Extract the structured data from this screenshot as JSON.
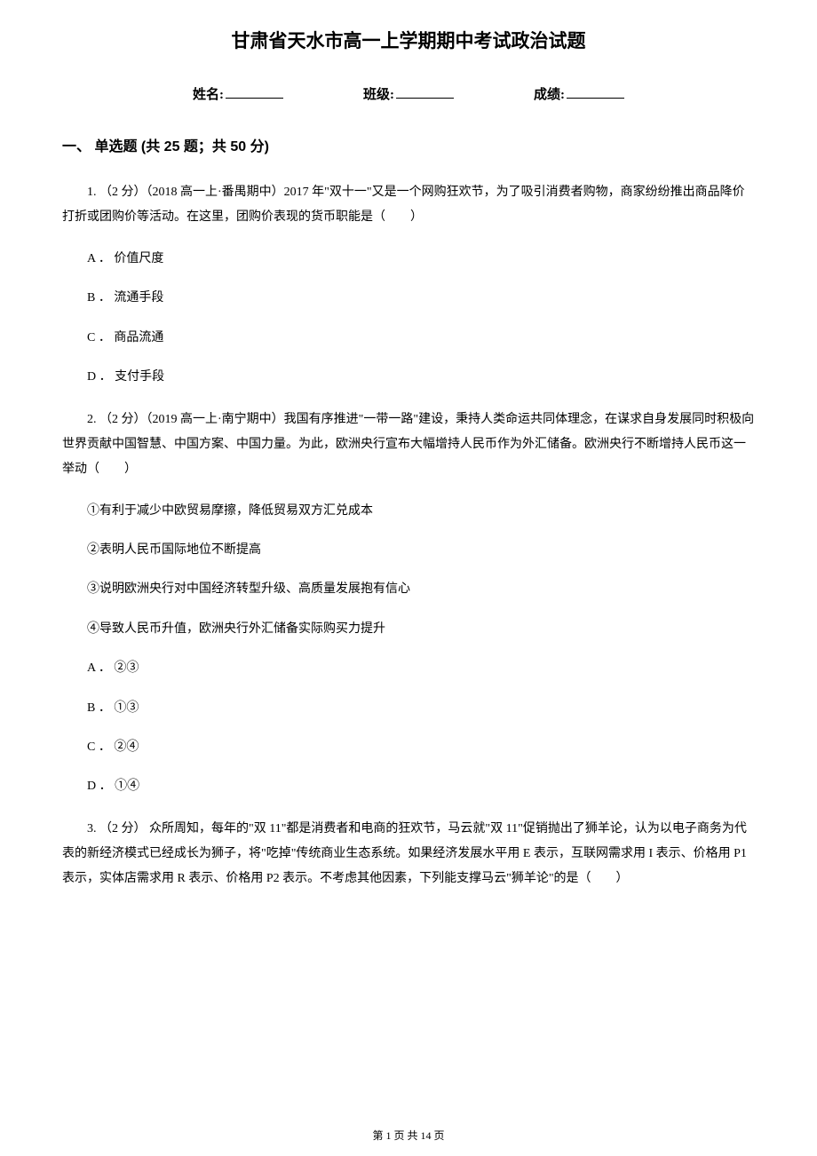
{
  "title": "甘肃省天水市高一上学期期中考试政治试题",
  "info": {
    "name_label": "姓名:",
    "class_label": "班级:",
    "score_label": "成绩:"
  },
  "section": {
    "header": "一、 单选题 (共 25 题；共 50 分)"
  },
  "q1": {
    "text": "1. （2 分）（2018 高一上·番禺期中）2017 年\"双十一\"又是一个网购狂欢节，为了吸引消费者购物，商家纷纷推出商品降价打折或团购价等活动。在这里，团购价表现的货币职能是（　　）",
    "optA": "A ．  价值尺度",
    "optB": "B ．  流通手段",
    "optC": "C ．  商品流通",
    "optD": "D ．  支付手段"
  },
  "q2": {
    "text": "2. （2 分）（2019 高一上·南宁期中）我国有序推进\"一带一路\"建设，秉持人类命运共同体理念，在谋求自身发展同时积极向世界贡献中国智慧、中国方案、中国力量。为此，欧洲央行宣布大幅增持人民币作为外汇储备。欧洲央行不断增持人民币这一举动（　　）",
    "sub1": "①有利于减少中欧贸易摩擦，降低贸易双方汇兑成本",
    "sub2": "②表明人民币国际地位不断提高",
    "sub3": "③说明欧洲央行对中国经济转型升级、高质量发展抱有信心",
    "sub4": "④导致人民币升值，欧洲央行外汇储备实际购买力提升",
    "optA": "A ．  ②③",
    "optB": "B ．  ①③",
    "optC": "C ．  ②④",
    "optD": "D ．  ①④"
  },
  "q3": {
    "text": "3. （2 分） 众所周知，每年的\"双 11\"都是消费者和电商的狂欢节，马云就\"双 11\"促销抛出了狮羊论，认为以电子商务为代表的新经济模式已经成长为狮子，将\"吃掉\"传统商业生态系统。如果经济发展水平用 E 表示，互联网需求用 I 表示、价格用 P1 表示，实体店需求用 R 表示、价格用 P2 表示。不考虑其他因素，下列能支撑马云\"狮羊论\"的是（　　）"
  },
  "footer": "第 1 页 共 14 页"
}
